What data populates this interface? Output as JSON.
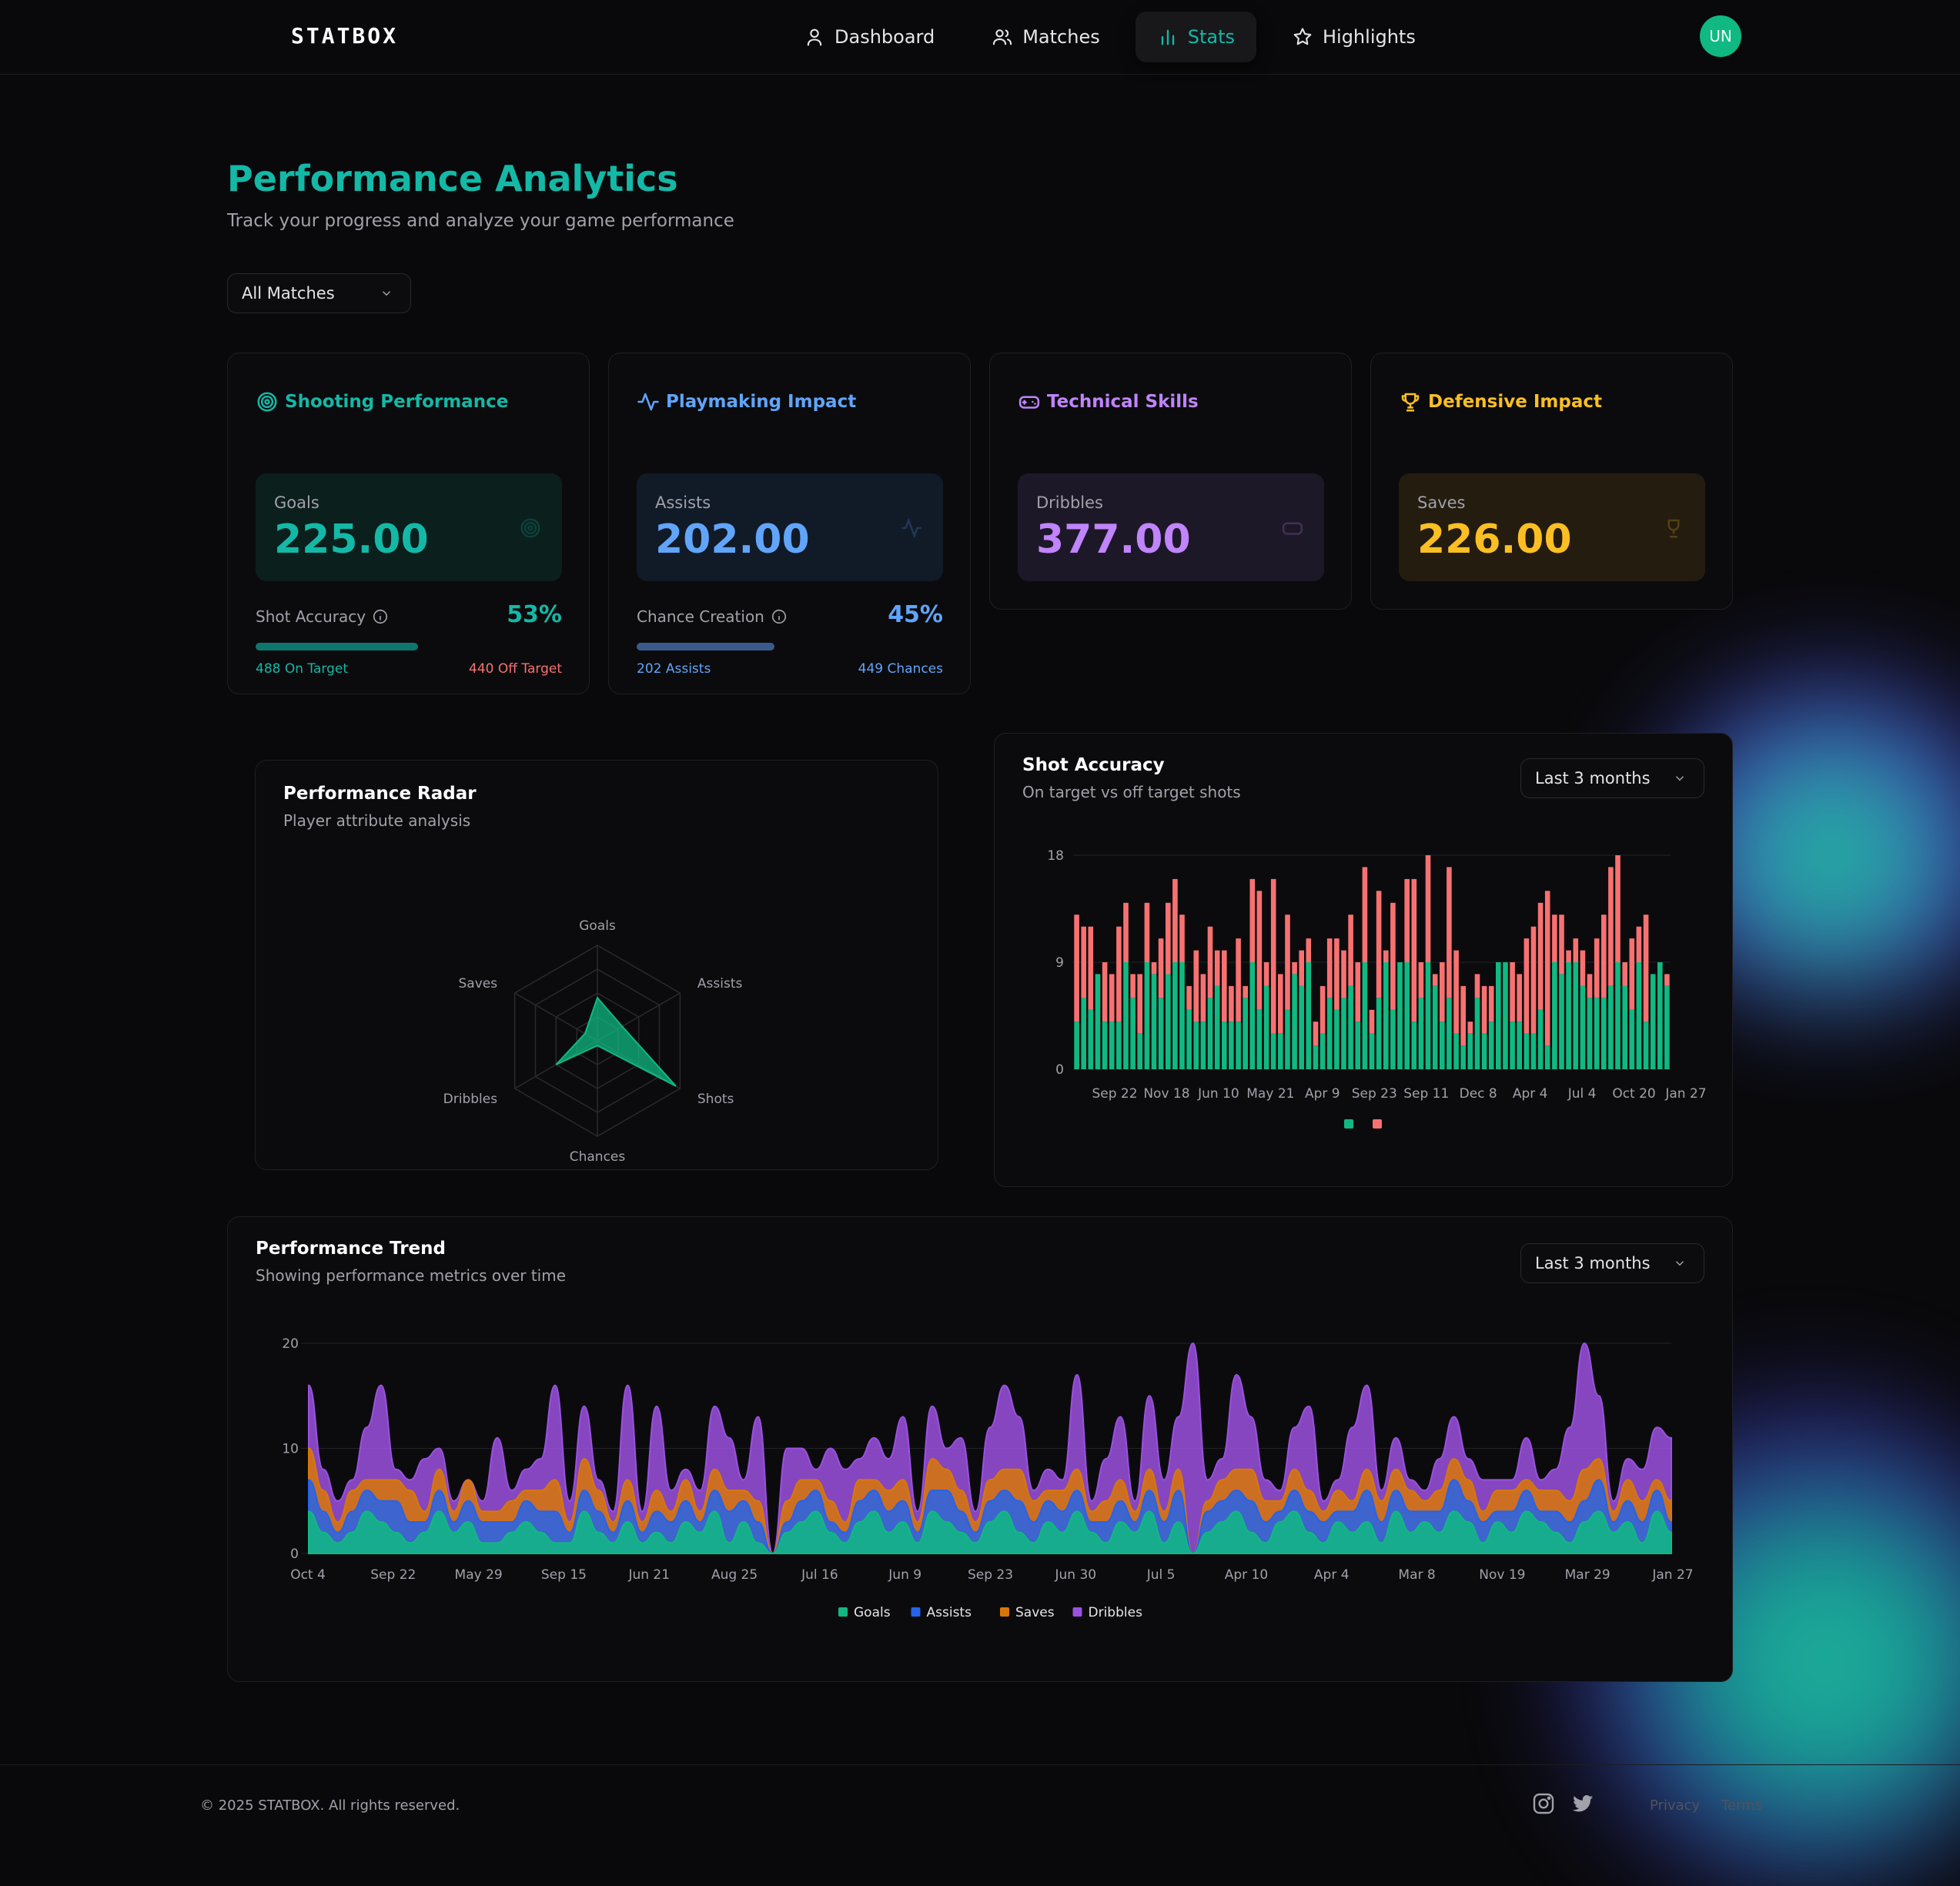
{
  "brand": "STATBOX",
  "nav": [
    {
      "label": "Dashboard",
      "icon": "user-icon"
    },
    {
      "label": "Matches",
      "icon": "users-icon"
    },
    {
      "label": "Stats",
      "icon": "bar-chart-icon"
    },
    {
      "label": "Highlights",
      "icon": "star-icon"
    }
  ],
  "avatar": "UN",
  "page": {
    "title": "Performance Analytics",
    "subtitle": "Track your progress and analyze your game performance",
    "filter": "All Matches"
  },
  "colors": {
    "teal": "#14b8a6",
    "blue": "#60a5fa",
    "purple": "#c084fc",
    "amber": "#fbbf24",
    "red": "#f87171",
    "goals": "#10b981",
    "assists": "#2563eb",
    "saves": "#d97706",
    "dribbles": "#9b51e0"
  },
  "cards": {
    "shooting": {
      "title": "Shooting Performance",
      "label": "Goals",
      "value": "225.00",
      "metric_label": "Shot Accuracy",
      "metric_pct": "53%",
      "fill": 0.53,
      "foot_left": "488 On Target",
      "foot_right": "440 Off Target"
    },
    "playmaking": {
      "title": "Playmaking Impact",
      "label": "Assists",
      "value": "202.00",
      "metric_label": "Chance Creation",
      "metric_pct": "45%",
      "fill": 0.45,
      "foot_left": "202 Assists",
      "foot_right": "449 Chances"
    },
    "technical": {
      "title": "Technical Skills",
      "label": "Dribbles",
      "value": "377.00"
    },
    "defensive": {
      "title": "Defensive Impact",
      "label": "Saves",
      "value": "226.00"
    }
  },
  "radar": {
    "title": "Performance Radar",
    "subtitle": "Player attribute analysis"
  },
  "shot_accuracy": {
    "title": "Shot Accuracy",
    "subtitle": "On target vs off target shots",
    "range": "Last 3 months"
  },
  "trend": {
    "title": "Performance Trend",
    "subtitle": "Showing performance metrics over time",
    "range": "Last 3 months"
  },
  "chart_data": [
    {
      "type": "radar",
      "axes": [
        "Goals",
        "Assists",
        "Shots",
        "Chances",
        "Dribbles",
        "Saves"
      ],
      "values": [
        0.45,
        0.3,
        0.95,
        0.05,
        0.5,
        0.15
      ],
      "max": 1
    },
    {
      "type": "bar",
      "stacked": true,
      "x_tick_labels": [
        "Sep 22",
        "Nov 18",
        "Jun 10",
        "May 21",
        "Apr 9",
        "Sep 23",
        "Sep 11",
        "Dec 8",
        "Apr 4",
        "Jul 4",
        "Oct 20",
        "Jan 27"
      ],
      "y_ticks": [
        0,
        9,
        18
      ],
      "ylim": [
        0,
        18
      ],
      "legend": [
        "",
        ""
      ],
      "series": [
        {
          "values": [
            4,
            6,
            5,
            8,
            4,
            4,
            4,
            9,
            6,
            3,
            9,
            8,
            6,
            8,
            9,
            9,
            5,
            4,
            4,
            6,
            7,
            4,
            4,
            4,
            6,
            9,
            5,
            7,
            3,
            3,
            5,
            8,
            7,
            9,
            2,
            3,
            6,
            5,
            6,
            7,
            4,
            9,
            3,
            6,
            9,
            5,
            9,
            9,
            4,
            6,
            9,
            7,
            4,
            6,
            3,
            2,
            3,
            6,
            3,
            4,
            9,
            9,
            4,
            4,
            3,
            3,
            5,
            2,
            9,
            8,
            9,
            9,
            7,
            6,
            6,
            6,
            7,
            9,
            7,
            5,
            9,
            4,
            8,
            9,
            7
          ]
        },
        {
          "values": [
            9,
            6,
            7,
            0,
            5,
            4,
            8,
            5,
            2,
            5,
            5,
            1,
            5,
            6,
            7,
            4,
            2,
            6,
            4,
            6,
            3,
            6,
            3,
            7,
            1,
            7,
            10,
            2,
            13,
            5,
            8,
            1,
            3,
            2,
            2,
            4,
            5,
            6,
            4,
            6,
            5,
            8,
            2,
            9,
            1,
            9,
            0,
            7,
            12,
            3,
            9,
            1,
            5,
            11,
            7,
            5,
            1,
            2,
            4,
            3,
            0,
            0,
            5,
            4,
            8,
            9,
            9,
            13,
            4,
            5,
            1,
            2,
            3,
            2,
            5,
            7,
            10,
            9,
            2,
            6,
            3,
            9,
            0,
            0,
            1
          ]
        }
      ]
    },
    {
      "type": "area",
      "stacked": true,
      "x_tick_labels": [
        "Oct 4",
        "Sep 22",
        "May 29",
        "Sep 15",
        "Jun 21",
        "Aug 25",
        "Jul 16",
        "Jun 9",
        "Sep 23",
        "Jun 30",
        "Jul 5",
        "Apr 10",
        "Apr 4",
        "Mar 8",
        "Nov 19",
        "Mar 29",
        "Jan 27"
      ],
      "y_ticks": [
        0,
        10,
        20
      ],
      "ylim": [
        0,
        20
      ],
      "series": [
        {
          "name": "Goals",
          "values": [
            4,
            2,
            1,
            2,
            4,
            3,
            2,
            1,
            2,
            4,
            2,
            3,
            1,
            1,
            2,
            3,
            2,
            1,
            1,
            4,
            2,
            1,
            3,
            1,
            2,
            1,
            3,
            2,
            4,
            1,
            3,
            1,
            0,
            2,
            3,
            4,
            2,
            1,
            3,
            4,
            2,
            3,
            1,
            4,
            3,
            2,
            1,
            3,
            4,
            2,
            1,
            3,
            2,
            4,
            2,
            1,
            3,
            2,
            4,
            1,
            3,
            0,
            2,
            3,
            4,
            2,
            1,
            3,
            4,
            2,
            1,
            3,
            2,
            3,
            1,
            4,
            2,
            3,
            2,
            4,
            3,
            1,
            3,
            2,
            4,
            3,
            2,
            1,
            3,
            4,
            2,
            3,
            1,
            4,
            2
          ]
        },
        {
          "name": "Assists",
          "values": [
            3,
            2,
            1,
            2,
            2,
            2,
            3,
            2,
            1,
            2,
            1,
            2,
            2,
            2,
            1,
            2,
            2,
            3,
            1,
            2,
            2,
            1,
            2,
            1,
            2,
            2,
            2,
            1,
            2,
            3,
            2,
            2,
            0,
            1,
            2,
            2,
            1,
            1,
            2,
            2,
            2,
            2,
            1,
            2,
            3,
            2,
            1,
            2,
            2,
            3,
            2,
            2,
            2,
            2,
            1,
            2,
            2,
            1,
            2,
            2,
            3,
            0,
            2,
            2,
            2,
            3,
            2,
            1,
            2,
            2,
            2,
            1,
            2,
            3,
            2,
            2,
            2,
            1,
            2,
            3,
            2,
            2,
            1,
            2,
            2,
            1,
            2,
            2,
            2,
            3,
            1,
            2,
            2,
            2,
            1
          ]
        },
        {
          "name": "Saves",
          "values": [
            3,
            2,
            1,
            2,
            1,
            2,
            2,
            3,
            1,
            2,
            1,
            2,
            1,
            1,
            2,
            1,
            2,
            3,
            1,
            3,
            2,
            1,
            2,
            1,
            2,
            1,
            2,
            1,
            2,
            2,
            1,
            2,
            0,
            2,
            2,
            1,
            2,
            1,
            2,
            1,
            2,
            2,
            1,
            3,
            2,
            2,
            1,
            2,
            2,
            3,
            2,
            1,
            2,
            2,
            1,
            2,
            2,
            1,
            2,
            1,
            2,
            0,
            1,
            2,
            2,
            3,
            2,
            1,
            2,
            2,
            1,
            2,
            1,
            2,
            2,
            2,
            2,
            1,
            2,
            2,
            2,
            1,
            2,
            2,
            1,
            2,
            2,
            2,
            3,
            2,
            1,
            2,
            2,
            1,
            2
          ]
        },
        {
          "name": "Dribbles",
          "values": [
            6,
            2,
            2,
            1,
            5,
            9,
            1,
            1,
            5,
            2,
            1,
            0,
            1,
            7,
            1,
            2,
            3,
            9,
            2,
            5,
            1,
            1,
            9,
            1,
            8,
            2,
            1,
            2,
            6,
            5,
            1,
            8,
            0,
            5,
            3,
            1,
            5,
            5,
            2,
            4,
            3,
            6,
            1,
            5,
            2,
            5,
            1,
            5,
            8,
            5,
            1,
            2,
            1,
            9,
            1,
            4,
            6,
            1,
            7,
            3,
            5,
            20,
            2,
            2,
            9,
            5,
            2,
            1,
            4,
            8,
            1,
            1,
            7,
            8,
            1,
            3,
            1,
            1,
            3,
            4,
            2,
            3,
            1,
            1,
            4,
            1,
            2,
            7,
            12,
            6,
            1,
            2,
            3,
            5,
            6
          ]
        }
      ]
    }
  ],
  "footer": {
    "copyright": "© 2025 STATBOX. All rights reserved.",
    "links": [
      "Privacy",
      "Terms"
    ]
  }
}
